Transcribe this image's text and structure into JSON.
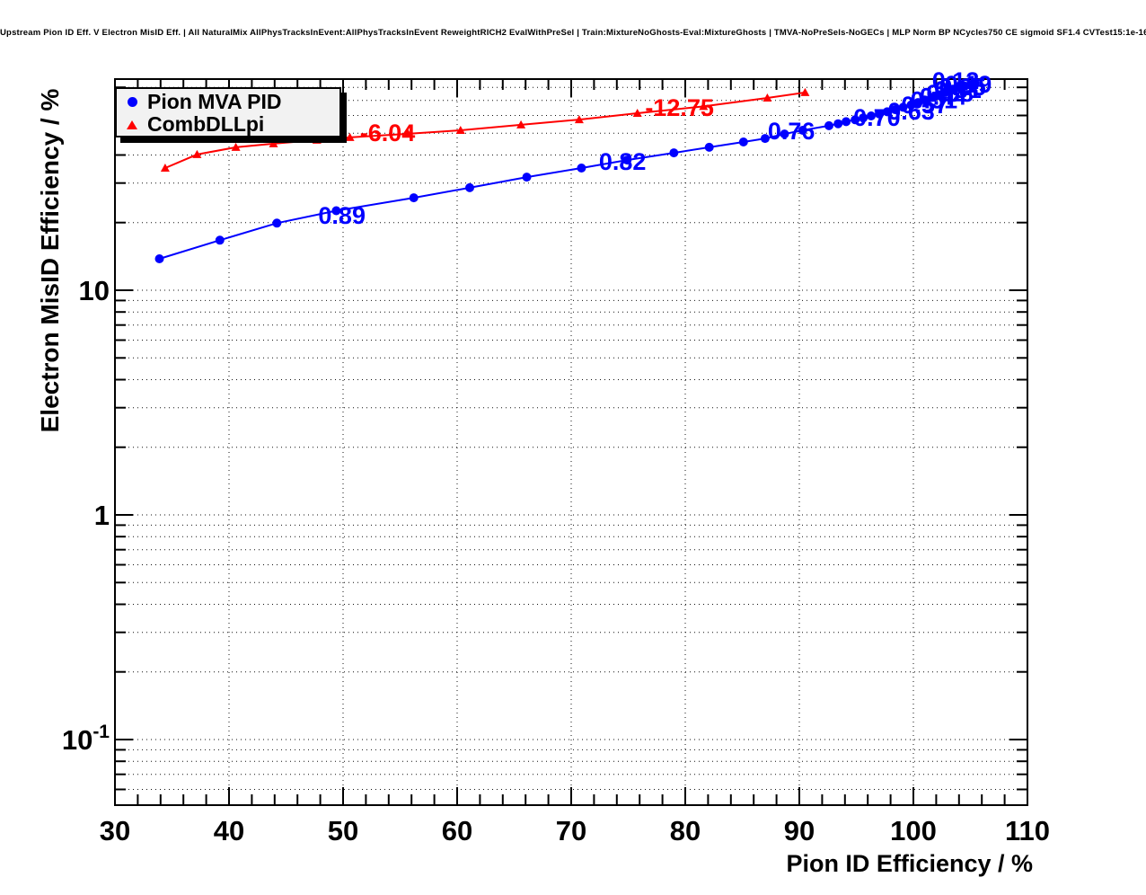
{
  "page_title": "Upstream Pion ID Eff. V Electron MisID Eff. | All NaturalMix AllPhysTracksInEvent:AllPhysTracksInEvent ReweightRICH2 EvalWithPreSel | Train:MixtureNoGhosts-Eval:MixtureGhosts | TMVA-NoPreSels-NoGECs | MLP Norm BP NCycles750 CE sigmoid SF1.4 CVTest15:1e-16 !UseReg",
  "axes": {
    "x_label": "Pion ID Efficiency / %",
    "y_label": "Electron MisID Efficiency / %"
  },
  "legend": {
    "entries": [
      {
        "label": "Pion MVA PID",
        "marker": "circle-icon",
        "color": "#0000ff"
      },
      {
        "label": "CombDLLpi",
        "marker": "triangle-icon",
        "color": "#ff0000"
      }
    ]
  },
  "chart_data": {
    "type": "line",
    "title": "Upstream Pion ID Eff. V Electron MisID Eff.",
    "xlabel": "Pion ID Efficiency / %",
    "ylabel": "Electron MisID Efficiency / %",
    "x_range": [
      30,
      110
    ],
    "y_range_log": [
      0.051,
      87
    ],
    "y_scale": "log",
    "grid": "dotted",
    "x_ticks_major": [
      30,
      40,
      50,
      60,
      70,
      80,
      90,
      100,
      110
    ],
    "x_minor_step": 2,
    "y_ticks_major": [
      {
        "value": 10,
        "base": "10",
        "exp": ""
      },
      {
        "value": 1,
        "base": "1",
        "exp": ""
      },
      {
        "value": 0.1,
        "base": "10",
        "exp": "-1"
      }
    ],
    "series": [
      {
        "name": "CombDLLpi",
        "color": "#ff0000",
        "marker": "triangle",
        "points": [
          [
            34.4,
            35.0
          ],
          [
            37.2,
            40.2
          ],
          [
            40.6,
            43.3
          ],
          [
            43.9,
            44.9
          ],
          [
            47.7,
            46.6
          ],
          [
            50.6,
            47.9
          ],
          [
            55.7,
            49.7
          ],
          [
            60.3,
            51.5
          ],
          [
            65.6,
            54.5
          ],
          [
            70.7,
            57.5
          ],
          [
            75.8,
            61.4
          ],
          [
            81.6,
            65.8
          ],
          [
            87.2,
            71.8
          ],
          [
            90.5,
            75.9
          ]
        ],
        "point_labels": [
          {
            "text": "-6.04",
            "x": 53.9,
            "y": 50.1
          },
          {
            "text": "-12.75",
            "x": 79.5,
            "y": 64.9
          }
        ]
      },
      {
        "name": "Pion MVA PID",
        "color": "#0000ff",
        "marker": "circle",
        "points": [
          [
            33.9,
            13.8
          ],
          [
            39.2,
            16.7
          ],
          [
            44.2,
            19.9
          ],
          [
            49.4,
            22.6
          ],
          [
            56.2,
            25.8
          ],
          [
            61.1,
            28.6
          ],
          [
            66.1,
            31.9
          ],
          [
            70.9,
            35.0
          ],
          [
            74.9,
            38.0
          ],
          [
            79.0,
            40.9
          ],
          [
            82.1,
            43.3
          ],
          [
            85.1,
            45.7
          ],
          [
            87.0,
            47.4
          ],
          [
            88.7,
            49.6
          ],
          [
            90.3,
            51.5
          ],
          [
            92.6,
            54.0
          ],
          [
            93.4,
            55.1
          ],
          [
            94.1,
            56.3
          ],
          [
            94.9,
            57.4
          ],
          [
            95.6,
            58.5
          ],
          [
            96.3,
            59.7
          ],
          [
            97.0,
            61.0
          ],
          [
            97.7,
            62.3
          ],
          [
            98.4,
            63.7
          ],
          [
            99.1,
            65.2
          ],
          [
            99.8,
            66.8
          ],
          [
            100.4,
            68.5
          ],
          [
            101.0,
            70.3
          ],
          [
            101.6,
            72.2
          ],
          [
            102.2,
            74.2
          ],
          [
            102.8,
            76.3
          ],
          [
            103.4,
            78.0
          ],
          [
            104.0,
            79.5
          ],
          [
            104.5,
            81.0
          ],
          [
            105.0,
            82.3
          ],
          [
            105.4,
            83.5
          ]
        ],
        "point_labels": [
          {
            "text": "0.89",
            "x": 49.9,
            "y": 21.5
          },
          {
            "text": "0.82",
            "x": 74.5,
            "y": 37.3
          },
          {
            "text": "0.76",
            "x": 89.3,
            "y": 51.1
          },
          {
            "text": "0.70",
            "x": 96.8,
            "y": 58.6
          },
          {
            "text": "0.63",
            "x": 99.8,
            "y": 62.5
          },
          {
            "text": "0.57",
            "x": 101.0,
            "y": 66.8
          },
          {
            "text": "0.51",
            "x": 101.8,
            "y": 70.0
          },
          {
            "text": "0.44",
            "x": 102.6,
            "y": 72.9
          },
          {
            "text": "0.38",
            "x": 103.2,
            "y": 75.3
          },
          {
            "text": "0.31",
            "x": 103.9,
            "y": 78.1
          },
          {
            "text": "0.25",
            "x": 104.3,
            "y": 80.0
          },
          {
            "text": "0.19",
            "x": 104.8,
            "y": 82.3
          },
          {
            "text": "0.12",
            "x": 103.7,
            "y": 85.5
          }
        ]
      }
    ],
    "colors": {
      "frame": "#000000",
      "grid": "#111111",
      "background": "#ffffff"
    }
  }
}
